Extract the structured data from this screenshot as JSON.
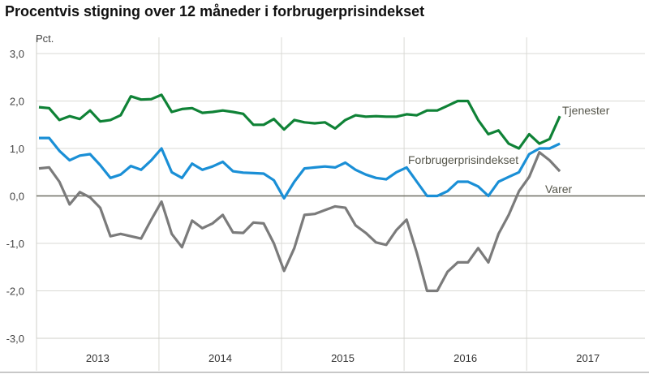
{
  "chart_data": {
    "type": "line",
    "title": "Procentvis stigning over 12 måneder i forbrugerprisindekset",
    "ylabel": "Pct.",
    "ylim": [
      -3.0,
      3.0
    ],
    "yticks": [
      "3,0",
      "2,0",
      "1,0",
      "0,0",
      "-1,0",
      "-2,0",
      "-3,0"
    ],
    "ytick_values": [
      3,
      2,
      1,
      0,
      -1,
      -2,
      -3
    ],
    "year_labels": [
      "2013",
      "2014",
      "2015",
      "2016",
      "2017"
    ],
    "x_start": "2013-01",
    "x_frequency": "monthly",
    "grid": true,
    "series": [
      {
        "name": "Tjenester",
        "color": "#0f8236",
        "values": [
          1.87,
          1.85,
          1.6,
          1.68,
          1.62,
          1.8,
          1.57,
          1.6,
          1.7,
          2.1,
          2.03,
          2.04,
          2.13,
          1.77,
          1.83,
          1.85,
          1.75,
          1.77,
          1.8,
          1.77,
          1.73,
          1.5,
          1.5,
          1.62,
          1.4,
          1.6,
          1.55,
          1.53,
          1.55,
          1.42,
          1.6,
          1.7,
          1.67,
          1.68,
          1.67,
          1.67,
          1.72,
          1.7,
          1.8,
          1.8,
          1.9,
          2.0,
          2.0,
          1.6,
          1.3,
          1.38,
          1.1,
          1.0,
          1.3,
          1.1,
          1.2,
          1.68
        ]
      },
      {
        "name": "Forbrugerprisindekset",
        "color": "#1a8fd6",
        "values": [
          1.22,
          1.22,
          0.95,
          0.75,
          0.85,
          0.88,
          0.65,
          0.38,
          0.45,
          0.63,
          0.55,
          0.75,
          1.0,
          0.5,
          0.38,
          0.68,
          0.55,
          0.62,
          0.72,
          0.52,
          0.49,
          0.48,
          0.47,
          0.33,
          -0.05,
          0.3,
          0.58,
          0.6,
          0.62,
          0.6,
          0.7,
          0.55,
          0.45,
          0.38,
          0.35,
          0.5,
          0.6,
          0.3,
          0.0,
          0.0,
          0.1,
          0.3,
          0.3,
          0.2,
          0.0,
          0.3,
          0.4,
          0.5,
          0.88,
          1.0,
          1.0,
          1.1
        ]
      },
      {
        "name": "Varer",
        "color": "#7b7b7b",
        "values": [
          0.58,
          0.6,
          0.3,
          -0.18,
          0.08,
          -0.03,
          -0.25,
          -0.85,
          -0.8,
          -0.85,
          -0.9,
          -0.5,
          -0.12,
          -0.8,
          -1.08,
          -0.52,
          -0.68,
          -0.58,
          -0.4,
          -0.77,
          -0.78,
          -0.56,
          -0.58,
          -1.0,
          -1.58,
          -1.1,
          -0.4,
          -0.38,
          -0.3,
          -0.22,
          -0.25,
          -0.62,
          -0.78,
          -0.98,
          -1.03,
          -0.72,
          -0.5,
          -1.2,
          -2.0,
          -2.0,
          -1.6,
          -1.4,
          -1.4,
          -1.1,
          -1.4,
          -0.8,
          -0.4,
          0.1,
          0.4,
          0.92,
          0.75,
          0.52
        ]
      }
    ]
  }
}
